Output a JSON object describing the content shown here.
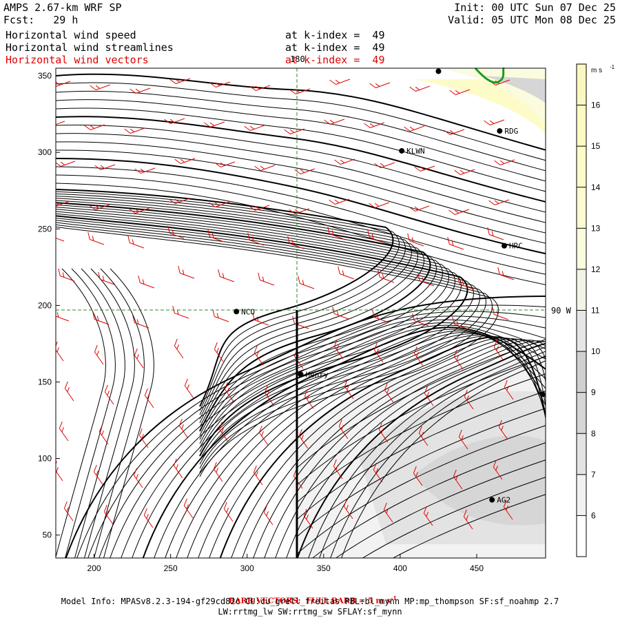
{
  "header": {
    "model": "AMPS 2.67-km WRF SP",
    "fcst": "Fcst:   29 h",
    "init": "Init: 00 UTC Sun 07 Dec 25",
    "valid": "Valid: 05 UTC Mon 08 Dec 25",
    "fields": [
      {
        "name": "Horizontal wind speed",
        "level": "at k-index =  49",
        "color": "#000000"
      },
      {
        "name": "Horizontal wind streamlines",
        "level": "at k-index =  49",
        "color": "#000000"
      },
      {
        "name": "Horizontal wind vectors",
        "level": "at k-index =  49",
        "color": "#e00000"
      }
    ]
  },
  "chart_data": {
    "type": "map",
    "x_ticks": [
      200,
      250,
      300,
      350,
      400,
      450
    ],
    "y_ticks": [
      50,
      100,
      150,
      200,
      250,
      300,
      350
    ],
    "xlim": [
      175,
      495
    ],
    "ylim": [
      35,
      355
    ],
    "meridian_label": "180",
    "parallel_label": "90 W",
    "stations": [
      {
        "name": "",
        "x": 425,
        "y": 353
      },
      {
        "name": "RDG",
        "x": 465,
        "y": 314
      },
      {
        "name": "KLWN",
        "x": 401,
        "y": 301
      },
      {
        "name": "HRC",
        "x": 468,
        "y": 239
      },
      {
        "name": "NCO",
        "x": 293,
        "y": 196
      },
      {
        "name": "Henry",
        "x": 335,
        "y": 155
      },
      {
        "name": "",
        "x": 493,
        "y": 142
      },
      {
        "name": "AG2",
        "x": 460,
        "y": 73
      }
    ],
    "colorbar": {
      "unit": "m s",
      "unit_exp": "-1",
      "levels": [
        "6",
        "7",
        "8",
        "9",
        "10",
        "11",
        "12",
        "13",
        "14",
        "15",
        "16"
      ],
      "colors": [
        "#ffffff",
        "#f2f2f2",
        "#e3e3e3",
        "#d6d6d6",
        "#d0d0d0",
        "#e6e6e6",
        "#f2f4e6",
        "#fbfbde",
        "#fcfcd0",
        "#fdfcc8",
        "#fcfac2",
        "#faf8c0"
      ]
    },
    "vector_color": "#e00000",
    "coast_color": "#1a9c1a"
  },
  "footer": {
    "barb": "BARB VECTORS:  FULL BARB = 5 m s",
    "barb_exp": "-1",
    "model_info": "Model Info: MPASv8.2.3-194-gf29cd82c CU:cu_grell_freitas PBL:bl_mynn MP:mp_thompson SF:sf_noahmp 2.7",
    "physics": "LW:rrtmg_lw SW:rrtmg_sw SFLAY:sf_mynn"
  }
}
